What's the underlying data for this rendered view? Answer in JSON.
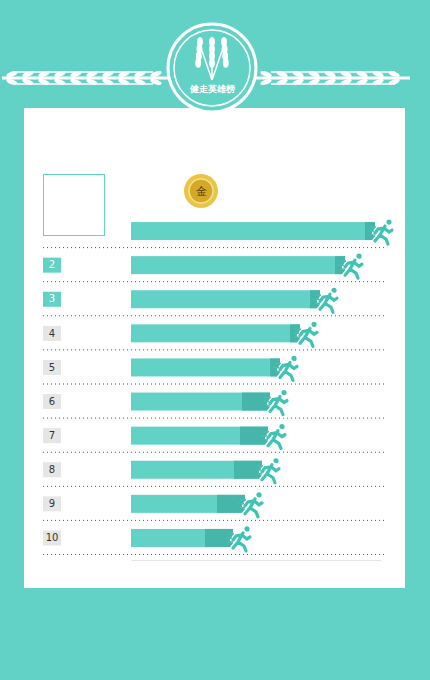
{
  "chart_data": {
    "type": "bar",
    "orientation": "horizontal",
    "title": "健走英雄榜",
    "categories": [
      null,
      "2",
      "3",
      "4",
      "5",
      "6",
      "7",
      "8",
      "9",
      "10"
    ],
    "values": [
      244,
      214,
      189,
      169,
      149,
      139,
      137,
      131,
      114,
      102
    ],
    "color": "#62d2c6",
    "xlim": [
      0,
      250
    ],
    "tick_labels": "y",
    "grid": false,
    "data_labels": false,
    "annotations": [
      "金"
    ]
  }
}
